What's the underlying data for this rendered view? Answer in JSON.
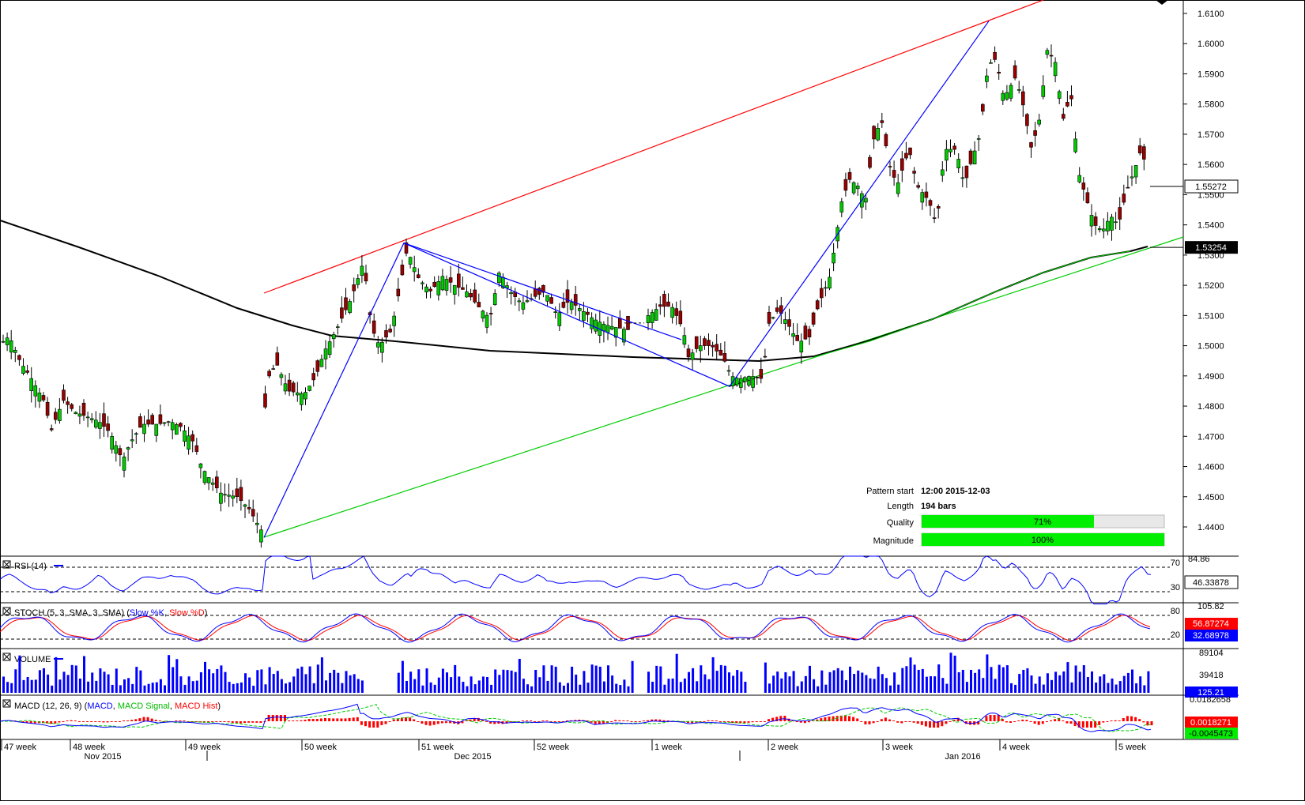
{
  "price_axis": {
    "ticks": [
      "1.6100",
      "1.6000",
      "1.5900",
      "1.5800",
      "1.5700",
      "1.5600",
      "1.5500",
      "1.5400",
      "1.5300",
      "1.5200",
      "1.5100",
      "1.5000",
      "1.4900",
      "1.4800",
      "1.4700",
      "1.4600",
      "1.4500",
      "1.4400"
    ],
    "current_price_label": "1.55272",
    "ma_price_label": "1.53254"
  },
  "time_axis": {
    "week_labels": [
      "47 week",
      "48 week",
      "49 week",
      "50 week",
      "51 week",
      "52 week",
      "1 week",
      "2 week",
      "3 week",
      "4 week",
      "5 week"
    ],
    "month_labels": [
      "Nov 2015",
      "Dec 2015",
      "Jan 2016"
    ]
  },
  "pattern_info": {
    "start_label": "Pattern start",
    "start_value": "12:00 2015-12-03",
    "length_label": "Length",
    "length_value": "194 bars",
    "quality_label": "Quality",
    "quality_value": "71%",
    "quality_fraction": 0.71,
    "magnitude_label": "Magnitude",
    "magnitude_value": "100%",
    "magnitude_fraction": 1.0
  },
  "indicators": {
    "rsi": {
      "title": "RSI (14)",
      "level_high": "70",
      "level_low": "30",
      "axis_top": "84.86",
      "value": "46.33878",
      "color": "#0000ff"
    },
    "stoch": {
      "title_prefix": "STOCH (5, 3, SMA, 3, SMA)",
      "k_label": "Slow %K",
      "d_label": "Slow %D",
      "level_high": "80",
      "level_low": "20",
      "axis_top": "105.82",
      "k_value": "56.87274",
      "d_value": "32.68978",
      "k_color": "#0000ff",
      "d_color": "#ff0000"
    },
    "volume": {
      "title": "VOLUME",
      "axis_top": "89104",
      "axis_mid": "39418",
      "value": "125.21",
      "color": "#0000ff"
    },
    "macd": {
      "title_prefix": "MACD (12, 26, 9)",
      "macd_label": "MACD",
      "signal_label": "MACD Signal",
      "hist_label": "MACD Hist",
      "axis_top": "0.0182658",
      "value1": "0.0018271",
      "value2": "-0.0045473",
      "macd_color": "#0000ff",
      "signal_color": "#00cc00",
      "hist_color": "#ff0000"
    }
  },
  "chart_data": {
    "type": "candlestick",
    "title": "",
    "ylim": [
      1.4347,
      1.6155
    ],
    "grid": false,
    "overlays": [
      {
        "type": "moving-average",
        "color": "#000000",
        "last_value": 1.53254
      },
      {
        "type": "trendline-upper",
        "color": "#ff0000"
      },
      {
        "type": "trendline-lower",
        "color": "#00cc00"
      },
      {
        "type": "zigzag",
        "color": "#0000ff",
        "points_price": [
          1.4365,
          1.534,
          1.4865,
          1.6075
        ]
      }
    ],
    "price_path": [
      [
        0,
        1.499
      ],
      [
        5,
        1.502
      ],
      [
        12,
        1.503
      ],
      [
        25,
        1.495
      ],
      [
        40,
        1.489
      ],
      [
        55,
        1.482
      ],
      [
        65,
        1.472
      ],
      [
        80,
        1.482
      ],
      [
        95,
        1.478
      ],
      [
        105,
        1.477
      ],
      [
        125,
        1.475
      ],
      [
        140,
        1.471
      ],
      [
        155,
        1.462
      ],
      [
        165,
        1.468
      ],
      [
        180,
        1.474
      ],
      [
        200,
        1.474
      ],
      [
        215,
        1.475
      ],
      [
        230,
        1.473
      ],
      [
        245,
        1.468
      ],
      [
        255,
        1.46
      ],
      [
        265,
        1.456
      ],
      [
        280,
        1.451
      ],
      [
        300,
        1.45
      ],
      [
        315,
        1.446
      ],
      [
        328,
        1.44
      ],
      [
        333,
        1.438
      ],
      [
        336,
        1.488
      ],
      [
        350,
        1.494
      ],
      [
        365,
        1.485
      ],
      [
        385,
        1.484
      ],
      [
        400,
        1.49
      ],
      [
        410,
        1.498
      ],
      [
        425,
        1.505
      ],
      [
        445,
        1.516
      ],
      [
        460,
        1.528
      ],
      [
        470,
        1.506
      ],
      [
        480,
        1.5
      ],
      [
        495,
        1.505
      ],
      [
        505,
        1.518
      ],
      [
        515,
        1.532
      ],
      [
        530,
        1.522
      ],
      [
        545,
        1.518
      ],
      [
        560,
        1.523
      ],
      [
        575,
        1.52
      ],
      [
        590,
        1.518
      ],
      [
        605,
        1.513
      ],
      [
        620,
        1.509
      ],
      [
        632,
        1.525
      ],
      [
        645,
        1.518
      ],
      [
        660,
        1.514
      ],
      [
        675,
        1.516
      ],
      [
        690,
        1.518
      ],
      [
        705,
        1.51
      ],
      [
        720,
        1.515
      ],
      [
        735,
        1.512
      ],
      [
        750,
        1.509
      ],
      [
        765,
        1.507
      ],
      [
        780,
        1.506
      ],
      [
        800,
        1.505
      ],
      [
        820,
        1.51
      ],
      [
        835,
        1.513
      ],
      [
        850,
        1.513
      ],
      [
        865,
        1.505
      ],
      [
        870,
        1.496
      ],
      [
        885,
        1.5
      ],
      [
        900,
        1.5
      ],
      [
        915,
        1.496
      ],
      [
        925,
        1.49
      ],
      [
        935,
        1.489
      ],
      [
        950,
        1.49
      ],
      [
        965,
        1.489
      ],
      [
        972,
        1.507
      ],
      [
        985,
        1.512
      ],
      [
        995,
        1.508
      ],
      [
        1010,
        1.501
      ],
      [
        1025,
        1.503
      ],
      [
        1035,
        1.513
      ],
      [
        1050,
        1.523
      ],
      [
        1065,
        1.548
      ],
      [
        1075,
        1.555
      ],
      [
        1085,
        1.553
      ],
      [
        1095,
        1.548
      ],
      [
        1105,
        1.568
      ],
      [
        1115,
        1.575
      ],
      [
        1125,
        1.56
      ],
      [
        1135,
        1.553
      ],
      [
        1150,
        1.565
      ],
      [
        1160,
        1.553
      ],
      [
        1175,
        1.548
      ],
      [
        1185,
        1.54
      ],
      [
        1195,
        1.565
      ],
      [
        1210,
        1.565
      ],
      [
        1220,
        1.553
      ],
      [
        1230,
        1.562
      ],
      [
        1240,
        1.57
      ],
      [
        1250,
        1.593
      ],
      [
        1260,
        1.595
      ],
      [
        1270,
        1.582
      ],
      [
        1285,
        1.589
      ],
      [
        1295,
        1.579
      ],
      [
        1305,
        1.565
      ],
      [
        1315,
        1.575
      ],
      [
        1325,
        1.598
      ],
      [
        1335,
        1.594
      ],
      [
        1345,
        1.575
      ],
      [
        1355,
        1.583
      ],
      [
        1365,
        1.557
      ],
      [
        1375,
        1.548
      ],
      [
        1385,
        1.54
      ],
      [
        1395,
        1.538
      ],
      [
        1405,
        1.543
      ],
      [
        1415,
        1.54
      ],
      [
        1425,
        1.551
      ],
      [
        1435,
        1.558
      ],
      [
        1445,
        1.566
      ],
      [
        1452,
        1.553
      ]
    ]
  }
}
